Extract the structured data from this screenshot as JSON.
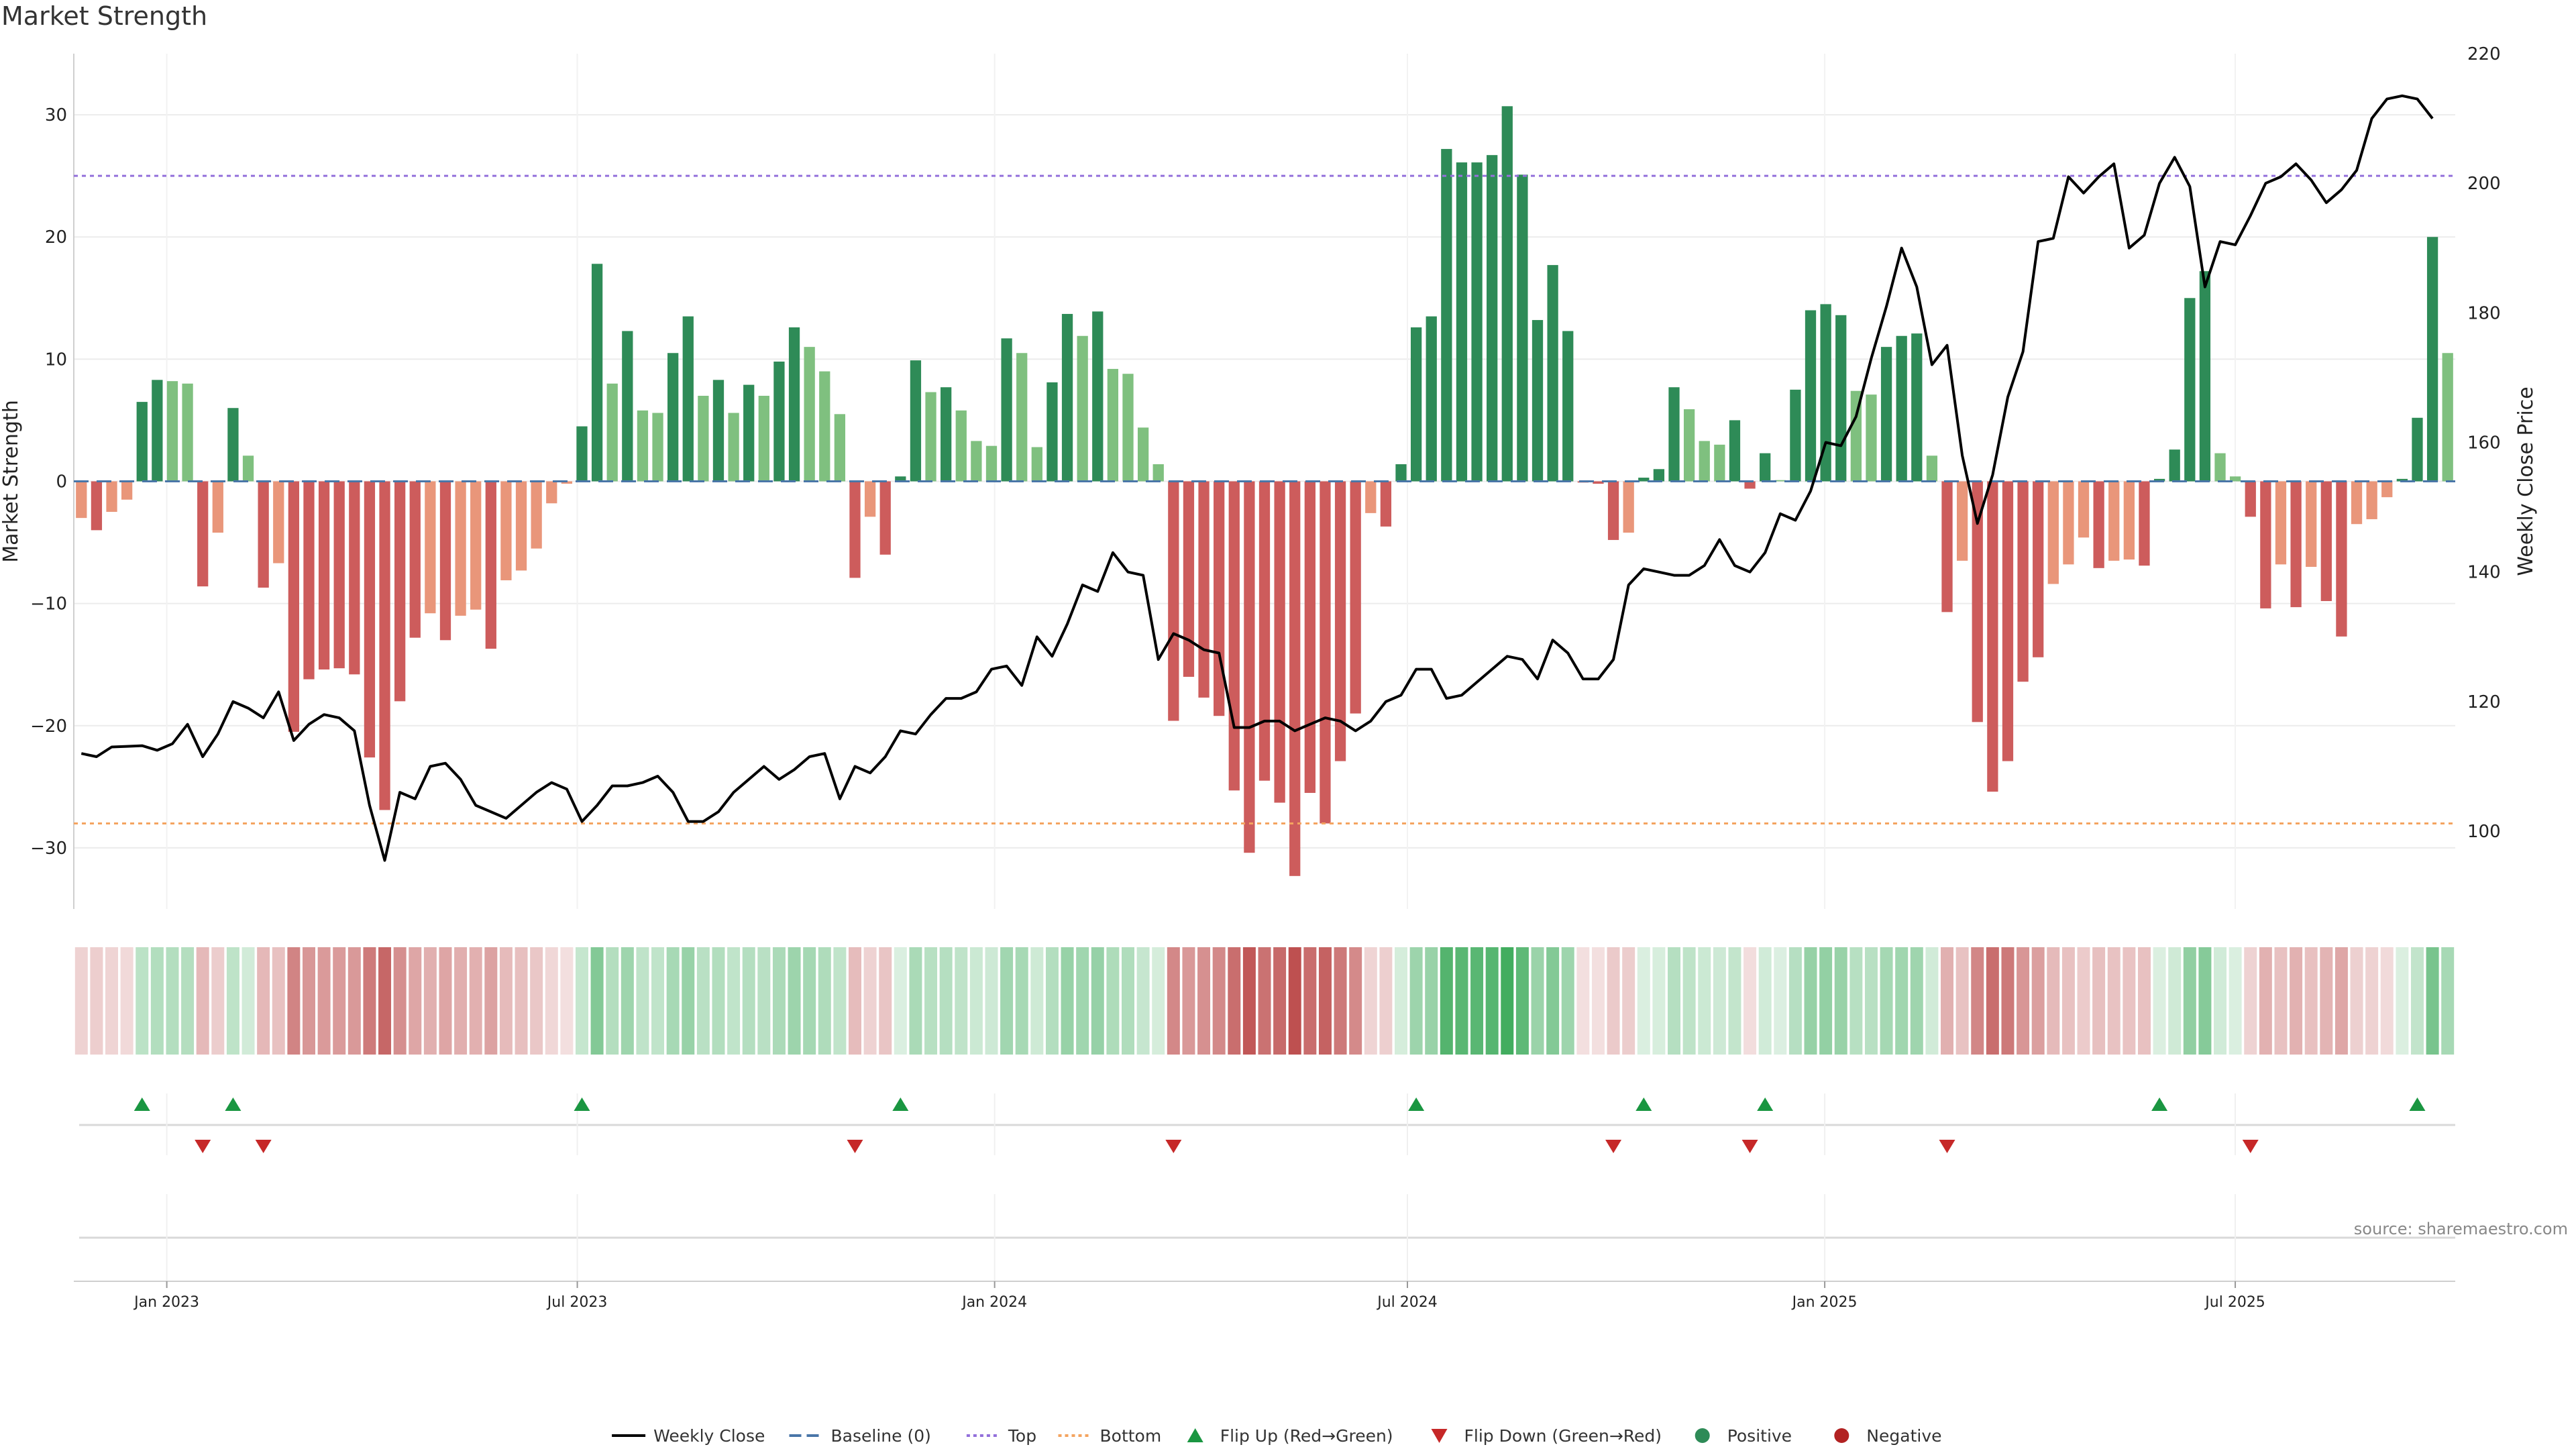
{
  "title": "Market Strength",
  "source": "source: sharemaestro.com",
  "colors": {
    "strong_green": "#2e8b57",
    "light_green": "#7fc07f",
    "strong_red": "#cd5c5c",
    "light_red": "#e9967a",
    "price_line": "#000000",
    "baseline": "#4a76a8",
    "top_line": "#9370db",
    "bottom_line": "#f4a460",
    "flip_up": "#1a9641",
    "flip_down": "#c62828"
  },
  "legend": [
    {
      "label": "Weekly Close",
      "kind": "line",
      "color": "#000000"
    },
    {
      "label": "Baseline (0)",
      "kind": "dash",
      "color": "#4a76a8"
    },
    {
      "label": "Top",
      "kind": "dot",
      "color": "#9370db"
    },
    {
      "label": "Bottom",
      "kind": "dot",
      "color": "#f4a460"
    },
    {
      "label": "Flip Up (Red→Green)",
      "kind": "tri-up",
      "color": "#1a9641"
    },
    {
      "label": "Flip Down (Green→Red)",
      "kind": "tri-down",
      "color": "#c62828"
    },
    {
      "label": "Positive",
      "kind": "circle",
      "color": "#2e8b57"
    },
    {
      "label": "Negative",
      "kind": "circle",
      "color": "#b22222"
    }
  ],
  "chart_data": {
    "type": "bar",
    "title": "Market Strength",
    "ylabel": "Market Strength",
    "y2label": "Weekly Close Price",
    "ylim": [
      -35,
      35
    ],
    "y2lim": [
      88,
      220
    ],
    "yticks": [
      -30,
      -20,
      -10,
      0,
      10,
      20,
      30
    ],
    "y2ticks": [
      100,
      120,
      140,
      160,
      180,
      200,
      220
    ],
    "x_start": "2022-11-21",
    "x_end": "2025-10-06",
    "x_ticks": [
      {
        "label": "Jan 2023",
        "date": "2023-01-01"
      },
      {
        "label": "Jul 2023",
        "date": "2023-07-01"
      },
      {
        "label": "Jan 2024",
        "date": "2024-01-01"
      },
      {
        "label": "Jul 2024",
        "date": "2024-07-01"
      },
      {
        "label": "Jan 2025",
        "date": "2025-01-01"
      },
      {
        "label": "Jul 2025",
        "date": "2025-07-01"
      }
    ],
    "top_level": 25,
    "bottom_level": -28,
    "baseline": 0,
    "series": [
      {
        "name": "Market Strength",
        "kind": "bar",
        "values": [
          -3,
          -4,
          -2.5,
          -1.5,
          6.5,
          8.3,
          8.2,
          8,
          -8.6,
          -4.2,
          6,
          2.1,
          -8.7,
          -6.7,
          -20.5,
          -16.2,
          -15.4,
          -15.3,
          -15.8,
          -22.6,
          -26.9,
          -18,
          -12.8,
          -10.8,
          -13,
          -11,
          -10.5,
          -13.7,
          -8.1,
          -7.3,
          -5.5,
          -1.8,
          -0.2,
          4.5,
          17.8,
          8,
          12.3,
          5.8,
          5.6,
          10.5,
          13.5,
          7,
          8.3,
          5.6,
          7.9,
          7,
          9.8,
          12.6,
          11,
          9,
          5.5,
          -7.9,
          -2.9,
          -6,
          0.4,
          9.9,
          7.3,
          7.7,
          5.8,
          3.3,
          2.9,
          11.7,
          10.5,
          2.8,
          8.1,
          13.7,
          11.9,
          13.9,
          9.2,
          8.8,
          4.4,
          1.4,
          -19.6,
          -16,
          -17.7,
          -19.2,
          -25.3,
          -30.4,
          -24.5,
          -26.3,
          -32.3,
          -25.5,
          -28,
          -22.9,
          -19,
          -2.6,
          -3.7,
          1.4,
          12.6,
          13.5,
          27.2,
          26.1,
          26.1,
          26.7,
          30.7,
          25.1,
          13.2,
          17.7,
          12.3,
          -0.1,
          -0.2,
          -4.8,
          -4.2,
          0.3,
          1,
          7.7,
          5.9,
          3.3,
          3,
          5,
          -0.6,
          2.3,
          0.1,
          7.5,
          14,
          14.5,
          13.6,
          7.4,
          7.1,
          11,
          11.9,
          12.1,
          2.1,
          -10.7,
          -6.5,
          -19.7,
          -25.4,
          -22.9,
          -16.4,
          -14.4,
          -8.4,
          -6.8,
          -4.6,
          -7.1,
          -6.5,
          -6.4,
          -6.9,
          0.2,
          2.6,
          15,
          17.2,
          2.3,
          0.4,
          -2.9,
          -10.4,
          -6.8,
          -10.3,
          -7,
          -9.8,
          -12.7,
          -3.5,
          -3.1,
          -1.3,
          0.2,
          5.2,
          20,
          10.5
        ]
      },
      {
        "name": "Weekly Close",
        "kind": "line",
        "axis": "right",
        "values": [
          112,
          111.5,
          113,
          113.1,
          113.2,
          112.5,
          113.5,
          116.5,
          111.5,
          115,
          120,
          119,
          117.5,
          121.5,
          114,
          116.5,
          118,
          117.5,
          115.5,
          104,
          95.5,
          106,
          105,
          110,
          110.5,
          108,
          104,
          103,
          102,
          104,
          106,
          107.5,
          106.5,
          101.5,
          104,
          107,
          107,
          107.5,
          108.5,
          106,
          101.5,
          101.5,
          103,
          106,
          108,
          110,
          108,
          109.5,
          111.5,
          112,
          105,
          110,
          109,
          111.5,
          115.5,
          115,
          118,
          120.5,
          120.5,
          121.5,
          125,
          125.5,
          122.5,
          130,
          127,
          132,
          138,
          137,
          143,
          140,
          139.5,
          126.5,
          130.5,
          129.5,
          128,
          127.5,
          116,
          116,
          117,
          117,
          115.5,
          116.5,
          117.5,
          117,
          115.5,
          117,
          120,
          121,
          125,
          125,
          120.5,
          121,
          123,
          125,
          127,
          126.5,
          123.5,
          129.5,
          127.5,
          123.5,
          123.5,
          126.5,
          138,
          140.5,
          140,
          139.5,
          139.5,
          141,
          145,
          141,
          140,
          143,
          149,
          148,
          152.5,
          160,
          159.5,
          164,
          173,
          181,
          190,
          184,
          172,
          175,
          158,
          147.5,
          155,
          167,
          174,
          191,
          191.5,
          201,
          198.5,
          201,
          203,
          190,
          192,
          200,
          204,
          199.5,
          184,
          191,
          190.5,
          195,
          200,
          201,
          203,
          200.5,
          197,
          199,
          202,
          210,
          213,
          213.5,
          213,
          210
        ]
      }
    ],
    "flip_up_index": [
      4,
      10,
      33,
      54,
      88,
      103,
      111,
      137,
      154
    ],
    "flip_down_index": [
      8,
      12,
      51,
      72,
      101,
      110,
      123,
      143
    ]
  }
}
